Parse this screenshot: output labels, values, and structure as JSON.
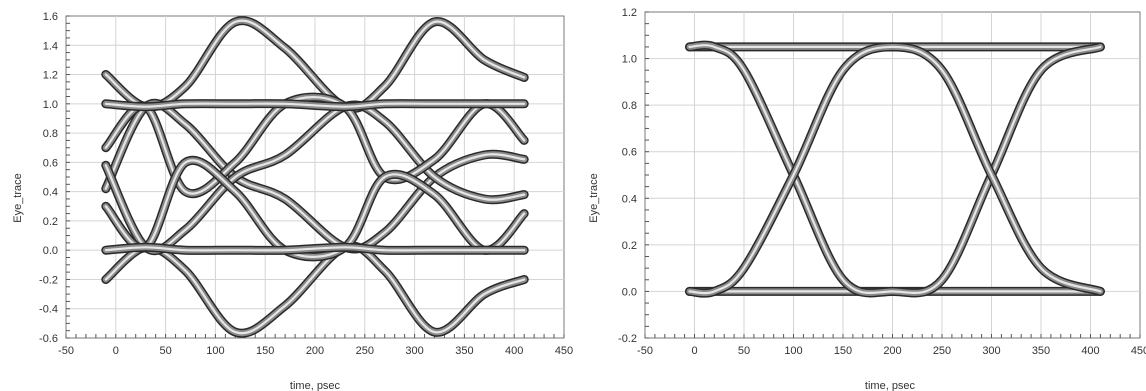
{
  "chart_data": [
    {
      "type": "line",
      "title": "",
      "xlabel": "time, psec",
      "ylabel": "Eye_trace",
      "xlim": [
        -50,
        450
      ],
      "ylim": [
        -0.6,
        1.6
      ],
      "grid": true,
      "x_ticks": [
        "-50",
        "0",
        "50",
        "100",
        "150",
        "200",
        "250",
        "300",
        "350",
        "400",
        "450"
      ],
      "y_ticks": [
        "-0.6",
        "-0.4",
        "-0.2",
        "0.0",
        "0.2",
        "0.4",
        "0.6",
        "0.8",
        "1.0",
        "1.2",
        "1.4",
        "1.6"
      ],
      "series": [
        {
          "x": [
            -10,
            30,
            70,
            120,
            170,
            230,
            270,
            320,
            370,
            410
          ],
          "values": [
            1.2,
            0.98,
            1.12,
            1.56,
            1.38,
            0.98,
            1.12,
            1.56,
            1.3,
            1.18
          ]
        },
        {
          "x": [
            -10,
            30,
            70,
            120,
            170,
            230,
            270,
            320,
            370,
            410
          ],
          "values": [
            -0.2,
            0.02,
            -0.14,
            -0.56,
            -0.38,
            0.02,
            -0.14,
            -0.56,
            -0.3,
            -0.2
          ]
        },
        {
          "x": [
            -10,
            30,
            70,
            120,
            170,
            230,
            270,
            320,
            370,
            410
          ],
          "values": [
            0.42,
            0.98,
            0.86,
            0.5,
            0.35,
            0.02,
            0.12,
            0.5,
            0.65,
            0.62
          ]
        },
        {
          "x": [
            -10,
            30,
            70,
            120,
            170,
            230,
            270,
            320,
            370,
            410
          ],
          "values": [
            0.58,
            0.02,
            0.14,
            0.5,
            0.65,
            0.98,
            0.88,
            0.5,
            0.35,
            0.38
          ]
        },
        {
          "x": [
            -10,
            30,
            70,
            120,
            170,
            230,
            270,
            320,
            370,
            410
          ],
          "values": [
            0.7,
            0.98,
            0.4,
            0.6,
            1.0,
            0.98,
            0.5,
            0.62,
            1.0,
            0.75
          ]
        },
        {
          "x": [
            -10,
            30,
            70,
            120,
            170,
            230,
            270,
            320,
            370,
            410
          ],
          "values": [
            0.3,
            0.02,
            0.6,
            0.4,
            0.0,
            0.02,
            0.5,
            0.38,
            0.0,
            0.25
          ]
        },
        {
          "x": [
            -10,
            30,
            70,
            120,
            170,
            230,
            270,
            320,
            370,
            410
          ],
          "values": [
            1.0,
            0.98,
            1.0,
            1.0,
            1.0,
            0.98,
            1.0,
            1.0,
            1.0,
            1.0
          ]
        },
        {
          "x": [
            -10,
            30,
            70,
            120,
            170,
            230,
            270,
            320,
            370,
            410
          ],
          "values": [
            0.0,
            0.02,
            0.0,
            0.0,
            0.0,
            0.02,
            0.0,
            0.0,
            0.0,
            0.0
          ]
        }
      ]
    },
    {
      "type": "line",
      "title": "",
      "xlabel": "time, psec",
      "ylabel": "Eye_trace",
      "xlim": [
        -50,
        450
      ],
      "ylim": [
        -0.2,
        1.2
      ],
      "grid": true,
      "x_ticks": [
        "-50",
        "0",
        "50",
        "100",
        "150",
        "200",
        "250",
        "300",
        "350",
        "400",
        "450"
      ],
      "y_ticks": [
        "-0.2",
        "0.0",
        "0.2",
        "0.4",
        "0.6",
        "0.8",
        "1.0",
        "1.2"
      ],
      "series": [
        {
          "x": [
            -5,
            50,
            100,
            150,
            200,
            250,
            300,
            350,
            410
          ],
          "values": [
            1.05,
            1.05,
            1.05,
            1.05,
            1.05,
            1.05,
            1.05,
            1.05,
            1.05
          ]
        },
        {
          "x": [
            -5,
            50,
            100,
            150,
            200,
            250,
            300,
            350,
            410
          ],
          "values": [
            0.0,
            0.0,
            0.0,
            0.0,
            0.0,
            0.0,
            0.0,
            0.0,
            0.0
          ]
        },
        {
          "x": [
            -5,
            20,
            50,
            100,
            150,
            200,
            250,
            300,
            350,
            410
          ],
          "values": [
            1.05,
            1.05,
            0.95,
            0.5,
            0.05,
            0.0,
            0.05,
            0.5,
            0.95,
            1.05
          ]
        },
        {
          "x": [
            -5,
            20,
            50,
            100,
            150,
            200,
            250,
            300,
            350,
            410
          ],
          "values": [
            0.0,
            0.0,
            0.1,
            0.5,
            0.95,
            1.05,
            0.95,
            0.5,
            0.1,
            0.0
          ]
        }
      ]
    }
  ]
}
